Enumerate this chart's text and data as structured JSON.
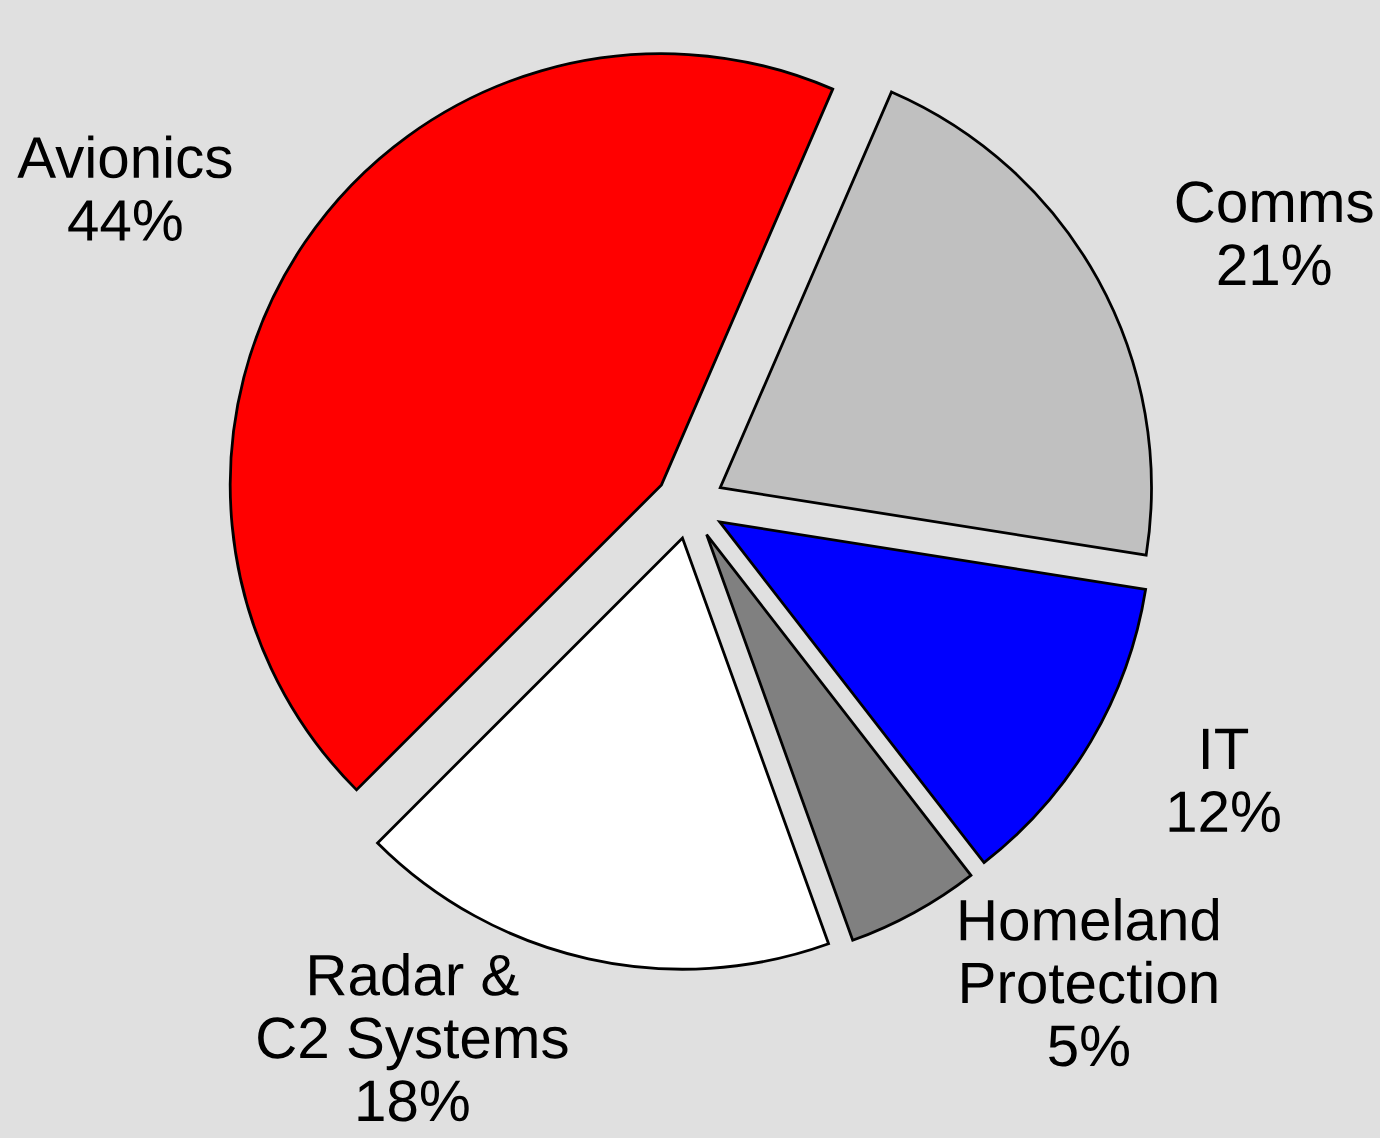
{
  "chart_data": {
    "type": "pie",
    "categories": [
      "Avionics",
      "Comms",
      "IT",
      "Homeland\nProtection",
      "Radar &\nC2 Systems"
    ],
    "values": [
      44,
      21,
      12,
      5,
      18
    ],
    "value_labels": [
      "44%",
      "21%",
      "12%",
      "5%",
      "18%"
    ],
    "colors": [
      "#ff0000",
      "#c0c0c0",
      "#0000ff",
      "#808080",
      "#ffffff"
    ],
    "legend": false
  }
}
